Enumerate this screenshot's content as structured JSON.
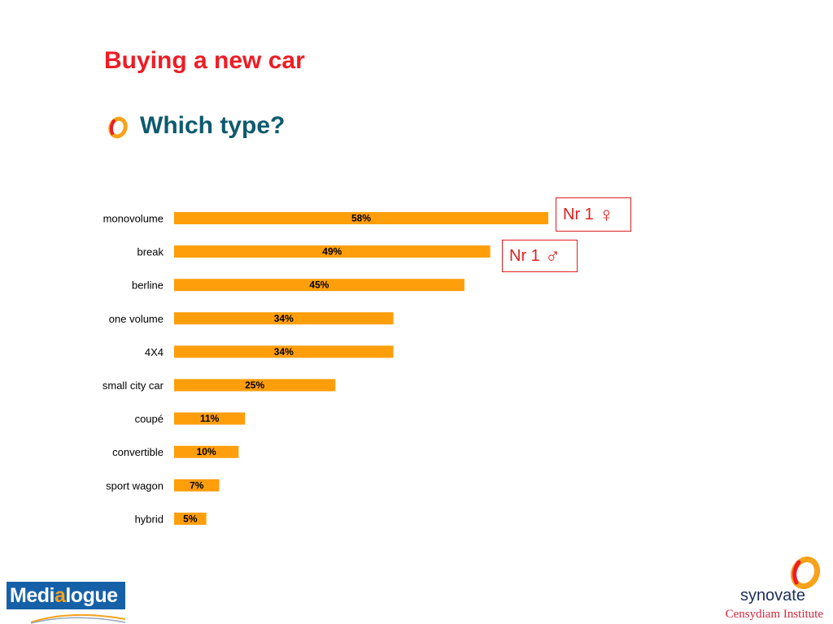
{
  "header": {
    "title": "Buying a new car",
    "subtitle": "Which type?"
  },
  "annotations": {
    "female": {
      "text": "Nr 1",
      "symbol": "♀"
    },
    "male": {
      "text": "Nr 1",
      "symbol": "♂"
    }
  },
  "logos": {
    "medialogue": {
      "part1": "Medi",
      "part2": "a",
      "part3": "logue"
    },
    "synovate": {
      "name": "synovate",
      "sub": "Censydiam Institute"
    }
  },
  "colors": {
    "bar": "#ff9e0b",
    "title": "#ee1c25",
    "subtitle": "#0e5a6e",
    "annotation": "#e02020"
  },
  "chart_data": {
    "type": "bar",
    "orientation": "horizontal",
    "categories": [
      "monovolume",
      "break",
      "berline",
      "one volume",
      "4X4",
      "small city car",
      "coupé",
      "convertible",
      "sport wagon",
      "hybrid"
    ],
    "values": [
      58,
      49,
      45,
      34,
      34,
      25,
      11,
      10,
      7,
      5
    ],
    "value_labels": [
      "58%",
      "49%",
      "45%",
      "34%",
      "34%",
      "25%",
      "11%",
      "10%",
      "7%",
      "5%"
    ],
    "unit": "%",
    "xlim": [
      0,
      100
    ],
    "grid": false,
    "legend": "none"
  }
}
